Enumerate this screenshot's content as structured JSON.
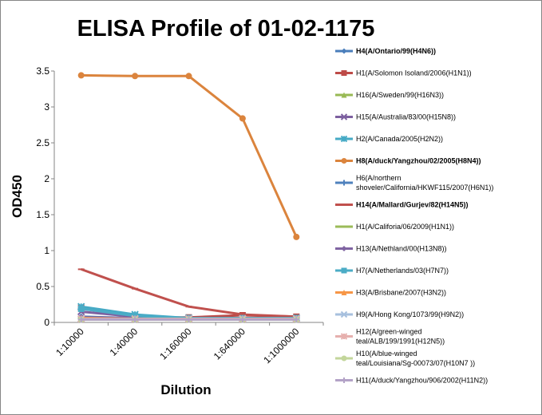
{
  "chart_data": {
    "type": "line",
    "title": "ELISA Profile of 01-02-1175",
    "xlabel": "Dilution",
    "ylabel": "OD450",
    "categories": [
      "1:10000",
      "1:40000",
      "1:160000",
      "1:640000",
      "1:1000000"
    ],
    "ylim": [
      0,
      3.5
    ],
    "yticks": [
      "0",
      "0.5",
      "1",
      "1.5",
      "2",
      "2.5",
      "3",
      "3.5"
    ],
    "ytick_values": [
      0,
      0.5,
      1,
      1.5,
      2,
      2.5,
      3,
      3.5
    ],
    "grid": false,
    "legend_position": "right",
    "series": [
      {
        "name": "H4(A/Ontario/99(H4N6))",
        "bold": true,
        "color": "#4a7ebb",
        "marker": "diamond",
        "values": [
          0.08,
          0.06,
          0.06,
          0.06,
          0.06
        ]
      },
      {
        "name": "H1(A/Solomon Isoland/2006(H1N1))",
        "bold": false,
        "color": "#be4b48",
        "marker": "square",
        "values": [
          0.2,
          0.07,
          0.07,
          0.1,
          0.08
        ]
      },
      {
        "name": "H16(A/Sweden/99(H16N3))",
        "bold": false,
        "color": "#98b954",
        "marker": "triangle",
        "values": [
          0.06,
          0.05,
          0.05,
          0.05,
          0.05
        ]
      },
      {
        "name": "H15(A/Australia/83/00(H15N8))",
        "bold": false,
        "color": "#7d60a0",
        "marker": "x",
        "values": [
          0.15,
          0.08,
          0.06,
          0.06,
          0.06
        ]
      },
      {
        "name": "H2(A/Canada/2005(H2N2))",
        "bold": false,
        "color": "#46aac5",
        "marker": "star",
        "values": [
          0.22,
          0.11,
          0.06,
          0.06,
          0.06
        ]
      },
      {
        "name": "H8(A/duck/Yangzhou/02/2005(H8N4))",
        "bold": true,
        "color": "#db843d",
        "marker": "circle",
        "values": [
          3.44,
          3.43,
          3.43,
          2.84,
          1.19
        ]
      },
      {
        "name": "H6(A/northern shoveler/California/HKWF115/2007(H6N1))",
        "bold": false,
        "color": "#4f81bd",
        "marker": "plus",
        "values": [
          0.06,
          0.05,
          0.05,
          0.05,
          0.05
        ]
      },
      {
        "name": "H14(A/Mallard/Gurjev/82(H14N5))",
        "bold": true,
        "color": "#c0504d",
        "marker": "dash",
        "values": [
          0.74,
          0.47,
          0.22,
          0.11,
          0.08
        ]
      },
      {
        "name": "H1(A/Califoria/06/2009(H1N1))",
        "bold": false,
        "color": "#9bbb59",
        "marker": "dash",
        "values": [
          0.06,
          0.05,
          0.05,
          0.05,
          0.05
        ]
      },
      {
        "name": "H13(A/Nethland/00(H13N8))",
        "bold": false,
        "color": "#8064a2",
        "marker": "diamond",
        "values": [
          0.07,
          0.06,
          0.06,
          0.06,
          0.06
        ]
      },
      {
        "name": "H7(A/Netherlands/03(H7N7))",
        "bold": false,
        "color": "#4bacc6",
        "marker": "square",
        "values": [
          0.19,
          0.09,
          0.06,
          0.06,
          0.06
        ]
      },
      {
        "name": "H3(A/Brisbane/2007(H3N2))",
        "bold": false,
        "color": "#f79646",
        "marker": "triangle",
        "values": [
          0.06,
          0.05,
          0.05,
          0.05,
          0.05
        ]
      },
      {
        "name": "H9(A/Hong Kong/1073/99(H9N2))",
        "bold": false,
        "color": "#a7c0de",
        "marker": "x",
        "values": [
          0.05,
          0.05,
          0.05,
          0.05,
          0.05
        ]
      },
      {
        "name": "H12(A/green-winged teal/ALB/199/1991(H12N5))",
        "bold": false,
        "color": "#e6b0ae",
        "marker": "star",
        "values": [
          0.05,
          0.05,
          0.05,
          0.05,
          0.05
        ]
      },
      {
        "name": "H10(A/blue-winged teal/Louisiana/Sg-00073/07(H10N7 ))",
        "bold": false,
        "color": "#c3d69b",
        "marker": "circle",
        "values": [
          0.04,
          0.04,
          0.04,
          0.04,
          0.04
        ]
      },
      {
        "name": "H11(A/duck/Yangzhou/906/2002(H11N2))",
        "bold": false,
        "color": "#b3a2c7",
        "marker": "plus",
        "values": [
          0.04,
          0.04,
          0.04,
          0.04,
          0.04
        ]
      }
    ]
  }
}
